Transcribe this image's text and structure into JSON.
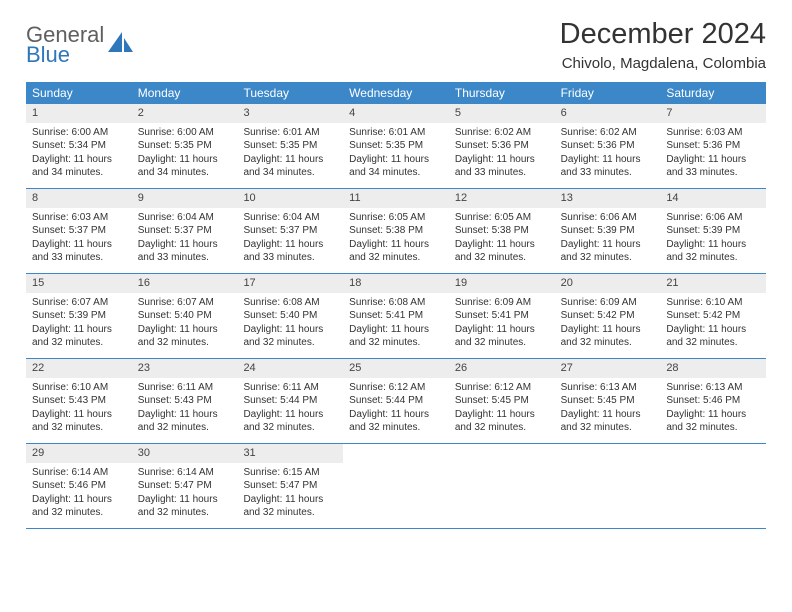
{
  "brand": {
    "word1": "General",
    "word2": "Blue"
  },
  "title": "December 2024",
  "location": "Chivolo, Magdalena, Colombia",
  "colors": {
    "header_bg": "#3b87c8",
    "daynum_bg": "#ededed",
    "border": "#3b87c8",
    "text": "#333333",
    "brand_gray": "#5f5f5f",
    "brand_blue": "#2f77bb"
  },
  "weekdays": [
    "Sunday",
    "Monday",
    "Tuesday",
    "Wednesday",
    "Thursday",
    "Friday",
    "Saturday"
  ],
  "weeks": [
    [
      {
        "n": "1",
        "sr": "Sunrise: 6:00 AM",
        "ss": "Sunset: 5:34 PM",
        "dl": "Daylight: 11 hours and 34 minutes."
      },
      {
        "n": "2",
        "sr": "Sunrise: 6:00 AM",
        "ss": "Sunset: 5:35 PM",
        "dl": "Daylight: 11 hours and 34 minutes."
      },
      {
        "n": "3",
        "sr": "Sunrise: 6:01 AM",
        "ss": "Sunset: 5:35 PM",
        "dl": "Daylight: 11 hours and 34 minutes."
      },
      {
        "n": "4",
        "sr": "Sunrise: 6:01 AM",
        "ss": "Sunset: 5:35 PM",
        "dl": "Daylight: 11 hours and 34 minutes."
      },
      {
        "n": "5",
        "sr": "Sunrise: 6:02 AM",
        "ss": "Sunset: 5:36 PM",
        "dl": "Daylight: 11 hours and 33 minutes."
      },
      {
        "n": "6",
        "sr": "Sunrise: 6:02 AM",
        "ss": "Sunset: 5:36 PM",
        "dl": "Daylight: 11 hours and 33 minutes."
      },
      {
        "n": "7",
        "sr": "Sunrise: 6:03 AM",
        "ss": "Sunset: 5:36 PM",
        "dl": "Daylight: 11 hours and 33 minutes."
      }
    ],
    [
      {
        "n": "8",
        "sr": "Sunrise: 6:03 AM",
        "ss": "Sunset: 5:37 PM",
        "dl": "Daylight: 11 hours and 33 minutes."
      },
      {
        "n": "9",
        "sr": "Sunrise: 6:04 AM",
        "ss": "Sunset: 5:37 PM",
        "dl": "Daylight: 11 hours and 33 minutes."
      },
      {
        "n": "10",
        "sr": "Sunrise: 6:04 AM",
        "ss": "Sunset: 5:37 PM",
        "dl": "Daylight: 11 hours and 33 minutes."
      },
      {
        "n": "11",
        "sr": "Sunrise: 6:05 AM",
        "ss": "Sunset: 5:38 PM",
        "dl": "Daylight: 11 hours and 32 minutes."
      },
      {
        "n": "12",
        "sr": "Sunrise: 6:05 AM",
        "ss": "Sunset: 5:38 PM",
        "dl": "Daylight: 11 hours and 32 minutes."
      },
      {
        "n": "13",
        "sr": "Sunrise: 6:06 AM",
        "ss": "Sunset: 5:39 PM",
        "dl": "Daylight: 11 hours and 32 minutes."
      },
      {
        "n": "14",
        "sr": "Sunrise: 6:06 AM",
        "ss": "Sunset: 5:39 PM",
        "dl": "Daylight: 11 hours and 32 minutes."
      }
    ],
    [
      {
        "n": "15",
        "sr": "Sunrise: 6:07 AM",
        "ss": "Sunset: 5:39 PM",
        "dl": "Daylight: 11 hours and 32 minutes."
      },
      {
        "n": "16",
        "sr": "Sunrise: 6:07 AM",
        "ss": "Sunset: 5:40 PM",
        "dl": "Daylight: 11 hours and 32 minutes."
      },
      {
        "n": "17",
        "sr": "Sunrise: 6:08 AM",
        "ss": "Sunset: 5:40 PM",
        "dl": "Daylight: 11 hours and 32 minutes."
      },
      {
        "n": "18",
        "sr": "Sunrise: 6:08 AM",
        "ss": "Sunset: 5:41 PM",
        "dl": "Daylight: 11 hours and 32 minutes."
      },
      {
        "n": "19",
        "sr": "Sunrise: 6:09 AM",
        "ss": "Sunset: 5:41 PM",
        "dl": "Daylight: 11 hours and 32 minutes."
      },
      {
        "n": "20",
        "sr": "Sunrise: 6:09 AM",
        "ss": "Sunset: 5:42 PM",
        "dl": "Daylight: 11 hours and 32 minutes."
      },
      {
        "n": "21",
        "sr": "Sunrise: 6:10 AM",
        "ss": "Sunset: 5:42 PM",
        "dl": "Daylight: 11 hours and 32 minutes."
      }
    ],
    [
      {
        "n": "22",
        "sr": "Sunrise: 6:10 AM",
        "ss": "Sunset: 5:43 PM",
        "dl": "Daylight: 11 hours and 32 minutes."
      },
      {
        "n": "23",
        "sr": "Sunrise: 6:11 AM",
        "ss": "Sunset: 5:43 PM",
        "dl": "Daylight: 11 hours and 32 minutes."
      },
      {
        "n": "24",
        "sr": "Sunrise: 6:11 AM",
        "ss": "Sunset: 5:44 PM",
        "dl": "Daylight: 11 hours and 32 minutes."
      },
      {
        "n": "25",
        "sr": "Sunrise: 6:12 AM",
        "ss": "Sunset: 5:44 PM",
        "dl": "Daylight: 11 hours and 32 minutes."
      },
      {
        "n": "26",
        "sr": "Sunrise: 6:12 AM",
        "ss": "Sunset: 5:45 PM",
        "dl": "Daylight: 11 hours and 32 minutes."
      },
      {
        "n": "27",
        "sr": "Sunrise: 6:13 AM",
        "ss": "Sunset: 5:45 PM",
        "dl": "Daylight: 11 hours and 32 minutes."
      },
      {
        "n": "28",
        "sr": "Sunrise: 6:13 AM",
        "ss": "Sunset: 5:46 PM",
        "dl": "Daylight: 11 hours and 32 minutes."
      }
    ],
    [
      {
        "n": "29",
        "sr": "Sunrise: 6:14 AM",
        "ss": "Sunset: 5:46 PM",
        "dl": "Daylight: 11 hours and 32 minutes."
      },
      {
        "n": "30",
        "sr": "Sunrise: 6:14 AM",
        "ss": "Sunset: 5:47 PM",
        "dl": "Daylight: 11 hours and 32 minutes."
      },
      {
        "n": "31",
        "sr": "Sunrise: 6:15 AM",
        "ss": "Sunset: 5:47 PM",
        "dl": "Daylight: 11 hours and 32 minutes."
      },
      {
        "empty": true
      },
      {
        "empty": true
      },
      {
        "empty": true
      },
      {
        "empty": true
      }
    ]
  ]
}
